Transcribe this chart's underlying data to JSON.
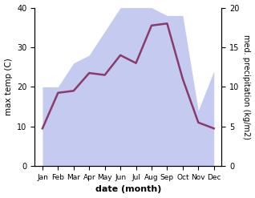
{
  "months": [
    "Jan",
    "Feb",
    "Mar",
    "Apr",
    "May",
    "Jun",
    "Jul",
    "Aug",
    "Sep",
    "Oct",
    "Nov",
    "Dec"
  ],
  "month_positions": [
    0,
    1,
    2,
    3,
    4,
    5,
    6,
    7,
    8,
    9,
    10,
    11
  ],
  "temperature": [
    9.5,
    18.5,
    19.0,
    23.5,
    23.0,
    28.0,
    26.0,
    35.5,
    36.0,
    22.0,
    11.0,
    9.5
  ],
  "precipitation": [
    10.0,
    10.0,
    13.0,
    14.0,
    17.0,
    20.0,
    20.0,
    20.0,
    19.0,
    19.0,
    7.0,
    12.0
  ],
  "temp_color": "#8B3A6B",
  "precip_color_fill": "#c5caf0",
  "left_ylim": [
    0,
    40
  ],
  "right_ylim": [
    0,
    20
  ],
  "left_ylabel": "max temp (C)",
  "right_ylabel": "med. precipitation (kg/m2)",
  "xlabel": "date (month)",
  "temp_linewidth": 1.8,
  "background_color": "#ffffff"
}
